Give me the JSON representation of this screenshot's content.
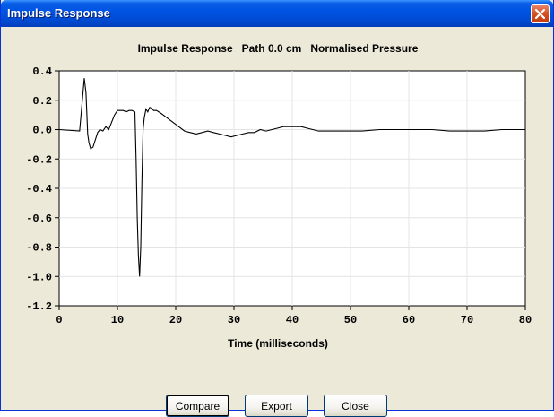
{
  "window": {
    "title": "Impulse Response"
  },
  "chart_data": {
    "type": "line",
    "title": "Impulse Response   Path 0.0 cm   Normalised Pressure",
    "xlabel": "Time (milliseconds)",
    "ylabel": "",
    "xlim": [
      0,
      80
    ],
    "ylim": [
      -1.2,
      0.4
    ],
    "xticks": [
      "0",
      "10",
      "20",
      "30",
      "40",
      "50",
      "60",
      "70",
      "80"
    ],
    "yticks": [
      "0.4",
      "0.2",
      "0.0",
      "-0.2",
      "-0.4",
      "-0.6",
      "-0.8",
      "-1.0",
      "-1.2"
    ],
    "grid": true,
    "series": [
      {
        "x": [
          0,
          3.5,
          4.3,
          4.6,
          4.9,
          5.1,
          5.4,
          5.8,
          6.2,
          6.6,
          7.0,
          7.5,
          8.0,
          8.5,
          9.0,
          9.5,
          10.0,
          10.5,
          11.0,
          11.5,
          12.0,
          12.5,
          13.0,
          13.2,
          13.4,
          13.6,
          13.8,
          14.0,
          14.2,
          14.4,
          14.6,
          14.9,
          15.2,
          15.5,
          15.8,
          16.2,
          16.7,
          17.5,
          18.5,
          19.5,
          20.5,
          21.5,
          22.5,
          23.5,
          24.5,
          25.5,
          26.5,
          27.5,
          28.5,
          29.5,
          30.5,
          31.5,
          32.5,
          33.5,
          34.5,
          35.5,
          36.5,
          37.5,
          38.5,
          39.5,
          40.5,
          41.5,
          42.5,
          43.5,
          44.5,
          45.5,
          47,
          49,
          52,
          55,
          58,
          61,
          64,
          67,
          70,
          73,
          76,
          80
        ],
        "y": [
          0.0,
          -0.01,
          0.35,
          0.25,
          -0.03,
          -0.09,
          -0.13,
          -0.12,
          -0.07,
          -0.02,
          0.0,
          -0.01,
          0.02,
          0.0,
          0.05,
          0.1,
          0.13,
          0.13,
          0.13,
          0.12,
          0.13,
          0.13,
          0.12,
          -0.2,
          -0.6,
          -0.86,
          -1.0,
          -0.8,
          -0.35,
          0.0,
          0.08,
          0.14,
          0.12,
          0.15,
          0.15,
          0.13,
          0.13,
          0.11,
          0.08,
          0.05,
          0.02,
          -0.01,
          -0.02,
          -0.03,
          -0.02,
          -0.01,
          -0.02,
          -0.03,
          -0.04,
          -0.05,
          -0.04,
          -0.03,
          -0.02,
          -0.02,
          0.0,
          -0.01,
          0.0,
          0.01,
          0.02,
          0.02,
          0.02,
          0.02,
          0.01,
          0.0,
          -0.01,
          -0.01,
          -0.01,
          -0.01,
          -0.01,
          0.0,
          0.0,
          0.0,
          0.0,
          -0.01,
          -0.01,
          -0.01,
          0.0,
          0.0
        ]
      }
    ]
  },
  "buttons": {
    "compare": "Compare",
    "export": "Export",
    "close": "Close"
  },
  "colors": {
    "titlebar": "#0054e3",
    "face": "#ece9d8",
    "plot_bg": "#ffffff",
    "grid": "#e4e4e4",
    "line": "#000000"
  }
}
